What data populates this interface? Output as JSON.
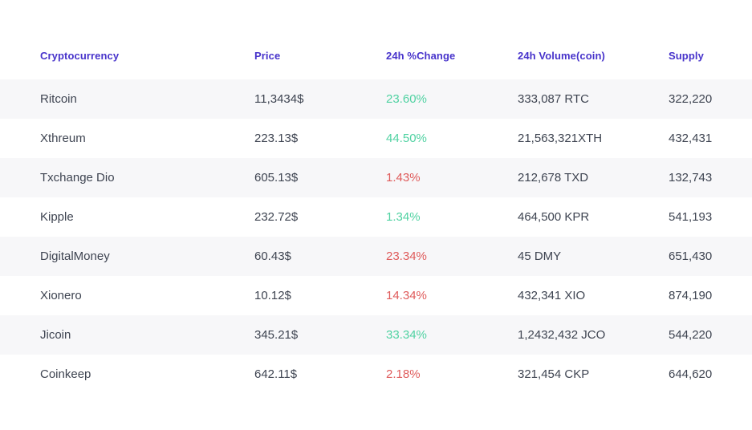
{
  "colors": {
    "header_text": "#4733cb",
    "body_text": "#3e4451",
    "positive_change": "#50d2a2",
    "negative_change": "#df5b5b",
    "row_alt_background": "#f7f7f9",
    "row_background": "#ffffff"
  },
  "table": {
    "columns": [
      {
        "label": "Cryptocurrency"
      },
      {
        "label": "Price"
      },
      {
        "label": "24h %Change"
      },
      {
        "label": "24h Volume(coin)"
      },
      {
        "label": "Supply"
      }
    ],
    "rows": [
      {
        "name": "Ritcoin",
        "price": "11,3434$",
        "change": "23.60%",
        "direction": "positive",
        "volume": "333,087 RTC",
        "supply": "322,220"
      },
      {
        "name": "Xthreum",
        "price": "223.13$",
        "change": "44.50%",
        "direction": "positive",
        "volume": "21,563,321XTH",
        "supply": "432,431"
      },
      {
        "name": "Txchange Dio",
        "price": "605.13$",
        "change": "1.43%",
        "direction": "negative",
        "volume": "212,678 TXD",
        "supply": "132,743"
      },
      {
        "name": "Kipple",
        "price": "232.72$",
        "change": "1.34%",
        "direction": "positive",
        "volume": "464,500 KPR",
        "supply": "541,193"
      },
      {
        "name": "DigitalMoney",
        "price": "60.43$",
        "change": "23.34%",
        "direction": "negative",
        "volume": "45 DMY",
        "supply": "651,430"
      },
      {
        "name": "Xionero",
        "price": "10.12$",
        "change": "14.34%",
        "direction": "negative",
        "volume": "432,341 XIO",
        "supply": "874,190"
      },
      {
        "name": "Jicoin",
        "price": "345.21$",
        "change": "33.34%",
        "direction": "positive",
        "volume": "1,2432,432 JCO",
        "supply": "544,220"
      },
      {
        "name": "Coinkeep",
        "price": "642.11$",
        "change": "2.18%",
        "direction": "negative",
        "volume": "321,454 CKP",
        "supply": "644,620"
      }
    ]
  }
}
